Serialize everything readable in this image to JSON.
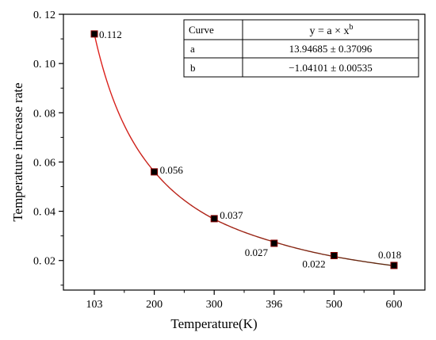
{
  "chart_data": {
    "type": "scatter",
    "title": "",
    "xlabel": "Temperature(K)",
    "ylabel": "Temperature increase rate",
    "x_tick_labels": [
      "103",
      "200",
      "300",
      "396",
      "500",
      "600"
    ],
    "y_tick_labels": [
      "0. 12",
      "0. 10",
      "0. 08",
      "0. 06",
      "0. 04",
      "0. 02"
    ],
    "y_tick_values": [
      0.12,
      0.1,
      0.08,
      0.06,
      0.04,
      0.02
    ],
    "x_categories": [
      "103",
      "200",
      "300",
      "396",
      "500",
      "600"
    ],
    "ylim": [
      0.008,
      0.12
    ],
    "grid": false,
    "series": [
      {
        "x": [
          103,
          200,
          300,
          396,
          500,
          600
        ],
        "values": [
          0.112,
          0.056,
          0.037,
          0.027,
          0.022,
          0.018
        ],
        "labels": [
          "0.112",
          "0.056",
          "0.037",
          "0.027",
          "0.022",
          "0.018"
        ],
        "marker": "square",
        "marker_color": "#000000",
        "marker_edge": "#8b0000"
      }
    ],
    "fit_curve": {
      "equation": "y = a × x^b",
      "a": 13.94685,
      "b": -1.04101,
      "color_start": "#e0201c",
      "color_end": "#5a2a10"
    },
    "fit_table": {
      "header": [
        "Curve",
        "y = a × x",
        "b"
      ],
      "rows": [
        [
          "a",
          "13.94685 ± 0.37096"
        ],
        [
          "b",
          "−1.04101 ± 0.00535"
        ]
      ]
    }
  }
}
